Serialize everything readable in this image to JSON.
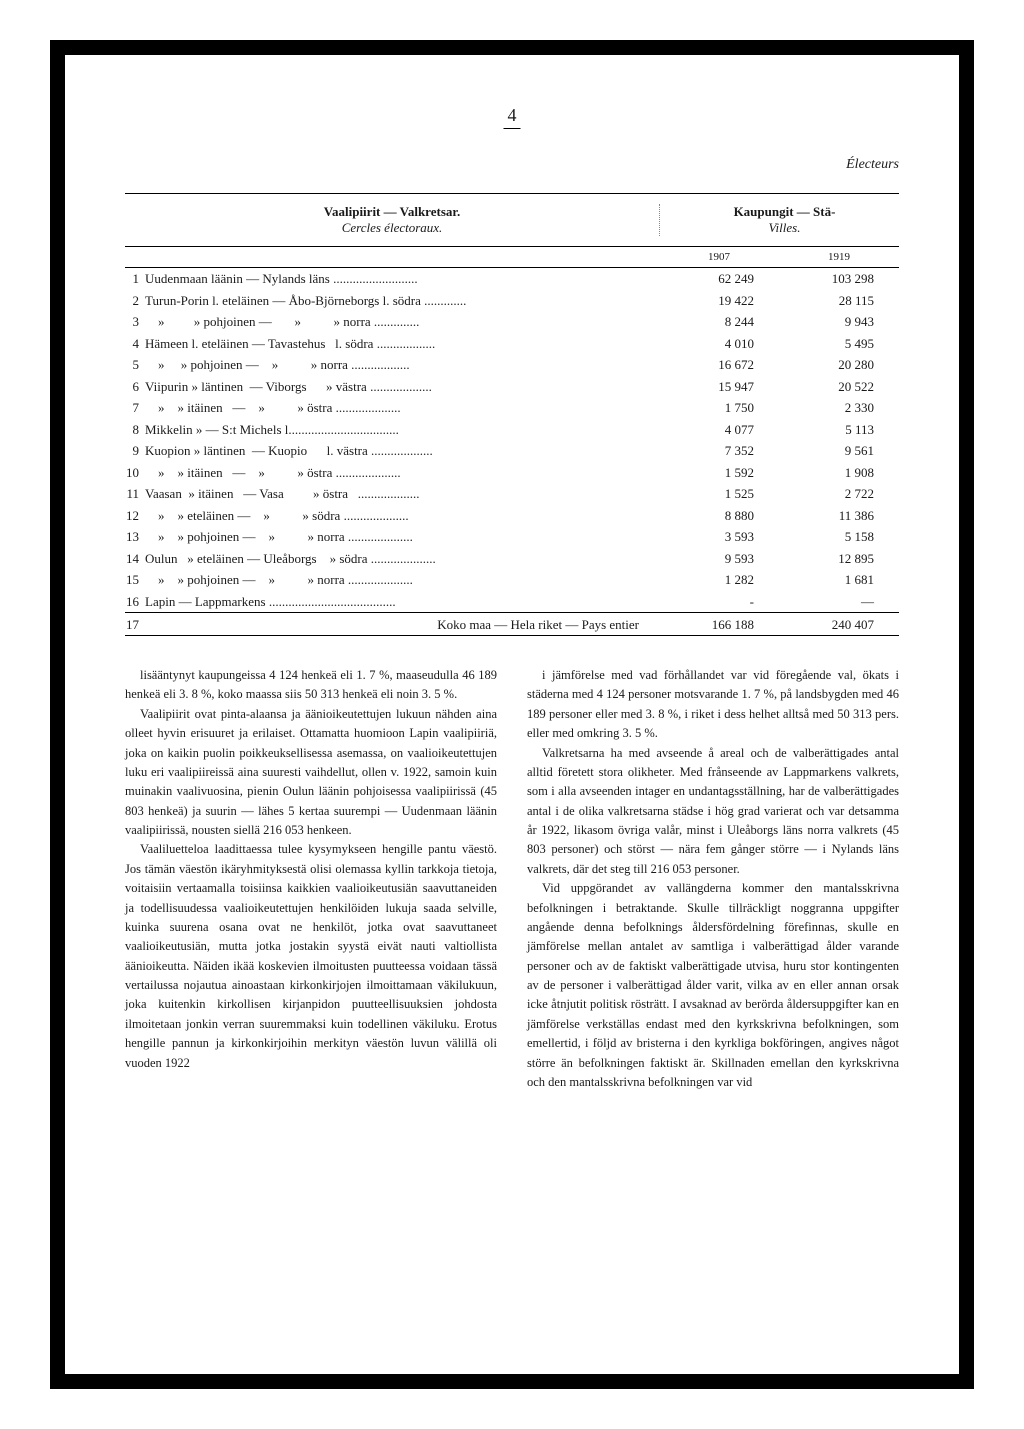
{
  "page_number": "4",
  "header_right": "Électeurs",
  "table": {
    "head_left_line1": "Vaalipiirit — Valkretsar.",
    "head_left_line2": "Cercles électoraux.",
    "head_right_line1": "Kaupungit — Stä-",
    "head_right_line2": "Villes.",
    "year_1": "1907",
    "year_2": "1919",
    "rows": [
      {
        "n": "1",
        "label": "Uudenmaan läänin — Nylands läns ..........................",
        "v1": "62 249",
        "v2": "103 298"
      },
      {
        "n": "2",
        "label": "Turun-Porin l. eteläinen — Åbo-Björneborgs l. södra .............",
        "v1": "19 422",
        "v2": "28 115"
      },
      {
        "n": "3",
        "label": "    »         » pohjoinen —       »          » norra ..............",
        "v1": "8 244",
        "v2": "9 943"
      },
      {
        "n": "4",
        "label": "Hämeen l. eteläinen — Tavastehus   l. södra ..................",
        "v1": "4 010",
        "v2": "5 495"
      },
      {
        "n": "5",
        "label": "    »     » pohjoinen —    »          » norra ..................",
        "v1": "16 672",
        "v2": "20 280"
      },
      {
        "n": "6",
        "label": "Viipurin » läntinen  — Viborgs      » västra ...................",
        "v1": "15 947",
        "v2": "20 522"
      },
      {
        "n": "7",
        "label": "    »    » itäinen   —    »          » östra ....................",
        "v1": "1 750",
        "v2": "2 330"
      },
      {
        "n": "8",
        "label": "Mikkelin » — S:t Michels l..................................",
        "v1": "4 077",
        "v2": "5 113"
      },
      {
        "n": "9",
        "label": "Kuopion » läntinen  — Kuopio      l. västra ...................",
        "v1": "7 352",
        "v2": "9 561"
      },
      {
        "n": "10",
        "label": "    »    » itäinen   —    »          » östra ....................",
        "v1": "1 592",
        "v2": "1 908"
      },
      {
        "n": "11",
        "label": "Vaasan  » itäinen   — Vasa         » östra   ...................",
        "v1": "1 525",
        "v2": "2 722"
      },
      {
        "n": "12",
        "label": "    »    » eteläinen —    »          » södra ....................",
        "v1": "8 880",
        "v2": "11 386"
      },
      {
        "n": "13",
        "label": "    »    » pohjoinen —    »          » norra ....................",
        "v1": "3 593",
        "v2": "5 158"
      },
      {
        "n": "14",
        "label": "Oulun   » eteläinen — Uleåborgs    » södra ....................",
        "v1": "9 593",
        "v2": "12 895"
      },
      {
        "n": "15",
        "label": "    »    » pohjoinen —    »          » norra ....................",
        "v1": "1 282",
        "v2": "1 681"
      },
      {
        "n": "16",
        "label": "Lapin — Lappmarkens .......................................",
        "v1": "-",
        "v2": "—"
      }
    ],
    "total_n": "17",
    "total_label": "Koko maa — Hela riket — Pays entier",
    "total_v1": "166 188",
    "total_v2": "240 407"
  },
  "left_column": {
    "p1": "lisääntynyt kaupungeissa 4 124 henkeä eli 1. 7 %, maaseudulla 46 189 henkeä eli 3. 8 %, koko maassa siis 50 313 henkeä eli noin 3. 5 %.",
    "p2": "Vaalipiirit ovat pinta-alaansa ja äänioikeutettujen lukuun nähden aina olleet hyvin erisuuret ja erilaiset. Ottamatta huomioon Lapin vaalipiiriä, joka on kaikin puolin poikkeuksellisessa asemassa, on vaalioikeutettujen luku eri vaalipiireissä aina suuresti vaihdellut, ollen v. 1922, samoin kuin muinakin vaalivuosina, pienin Oulun läänin pohjoisessa vaalipiirissä (45 803 henkeä) ja suurin — lähes 5 kertaa suurempi — Uudenmaan läänin vaalipiirissä, nousten siellä 216 053 henkeen.",
    "p3": "Vaaliluetteloa laadittaessa tulee kysymykseen hengille pantu väestö. Jos tämän väestön ikäryhmityksestä olisi olemassa kyllin tarkkoja tietoja, voitaisiin vertaamalla toisiinsa kaikkien vaalioikeutusiän saavuttaneiden ja todellisuudessa vaalioikeutettujen henkilöiden lukuja saada selville, kuinka suurena osana ovat ne henkilöt, jotka ovat saavuttaneet vaalioikeutusiän, mutta jotka jostakin syystä eivät nauti valtiollista äänioikeutta. Näiden ikää koskevien ilmoitusten puutteessa voidaan tässä vertailussa nojautua ainoastaan kirkonkirjojen ilmoittamaan väkilukuun, joka kuitenkin kirkollisen kirjanpidon puutteellisuuksien johdosta ilmoitetaan jonkin verran suuremmaksi kuin todellinen väkiluku. Erotus hengille pannun ja kirkonkirjoihin merkityn väestön luvun välillä oli vuoden 1922"
  },
  "right_column": {
    "p1": "i jämförelse med vad förhållandet var vid föregående val, ökats i städerna med 4 124 personer motsvarande 1. 7 %, på landsbygden med 46 189 personer eller med 3. 8 %, i riket i dess helhet alltså med 50 313 pers. eller med omkring 3. 5 %.",
    "p2": "Valkretsarna ha med avseende å areal och de valberättigades antal alltid företett stora olikheter. Med frånseende av Lappmarkens valkrets, som i alla avseenden intager en undantagsställning, har de valberättigades antal i de olika valkretsarna städse i hög grad varierat och var detsamma år 1922, likasom övriga valår, minst i Uleåborgs läns norra valkrets (45 803 personer) och störst — nära fem gånger större — i Nylands läns valkrets, där det steg till 216 053 personer.",
    "p3": "Vid uppgörandet av vallängderna kommer den mantalsskrivna befolkningen i betraktande. Skulle tillräckligt noggranna uppgifter angående denna befolknings åldersfördelning förefinnas, skulle en jämförelse mellan antalet av samtliga i valberättigad ålder varande personer och av de faktiskt valberättigade utvisa, huru stor kontingenten av de personer i valberättigad ålder varit, vilka av en eller annan orsak icke åtnjutit politisk rösträtt. I avsaknad av berörda åldersuppgifter kan en jämförelse verkställas endast med den kyrkskrivna befolkningen, som emellertid, i följd av bristerna i den kyrkliga bokföringen, angives något större än befolkningen faktiskt är. Skillnaden emellan den kyrkskrivna och den mantalsskrivna befolkningen var vid"
  }
}
